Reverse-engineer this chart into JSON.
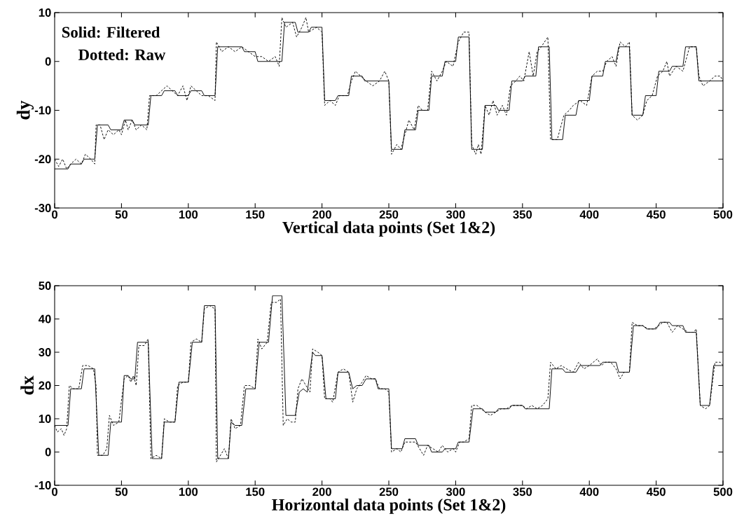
{
  "chart_data": [
    {
      "type": "line",
      "xlabel": "Vertical data points (Set 1&2)",
      "ylabel": "dy",
      "xlim": [
        0,
        500
      ],
      "ylim": [
        -30,
        10
      ],
      "xticks": [
        0,
        50,
        100,
        150,
        200,
        250,
        300,
        350,
        400,
        450,
        500
      ],
      "yticks": [
        -30,
        -20,
        -10,
        0,
        10
      ],
      "annotations": [
        "Solid: Filtered",
        "Dotted: Raw"
      ],
      "series": [
        {
          "color": "#000000",
          "line_style": "solid",
          "x": [
            0,
            10,
            12,
            20,
            22,
            30,
            32,
            40,
            42,
            50,
            52,
            58,
            60,
            70,
            72,
            80,
            82,
            90,
            92,
            100,
            102,
            110,
            112,
            120,
            122,
            140,
            142,
            150,
            152,
            170,
            172,
            180,
            182,
            190,
            192,
            200,
            202,
            210,
            212,
            220,
            222,
            230,
            232,
            250,
            252,
            260,
            262,
            270,
            272,
            280,
            282,
            290,
            292,
            300,
            302,
            310,
            312,
            320,
            322,
            330,
            332,
            340,
            342,
            350,
            352,
            360,
            362,
            370,
            372,
            380,
            382,
            390,
            392,
            400,
            402,
            410,
            412,
            420,
            422,
            430,
            432,
            440,
            442,
            450,
            452,
            460,
            462,
            470,
            472,
            480,
            482,
            500
          ],
          "values": [
            -22,
            -22,
            -21,
            -21,
            -20,
            -20,
            -13,
            -13,
            -14,
            -14,
            -12,
            -12,
            -13,
            -13,
            -7,
            -7,
            -6,
            -6,
            -7,
            -7,
            -6,
            -6,
            -7,
            -7,
            3,
            3,
            2,
            2,
            0,
            0,
            8,
            8,
            6,
            6,
            7,
            7,
            -8,
            -8,
            -7,
            -7,
            -3,
            -3,
            -4,
            -4,
            -18,
            -18,
            -14,
            -14,
            -10,
            -10,
            -3,
            -3,
            0,
            0,
            5,
            5,
            -18,
            -18,
            -9,
            -9,
            -10,
            -10,
            -4,
            -4,
            -3,
            -3,
            3,
            3,
            -16,
            -16,
            -11,
            -11,
            -8,
            -8,
            -3,
            -3,
            0,
            0,
            3,
            3,
            -11,
            -11,
            -7,
            -7,
            -2,
            -2,
            -1,
            -1,
            3,
            3,
            -4,
            -4
          ]
        },
        {
          "color": "#000000",
          "line_style": "dotted",
          "x": [
            0,
            3,
            6,
            9,
            12,
            16,
            20,
            23,
            27,
            30,
            31,
            34,
            37,
            40,
            44,
            48,
            50,
            53,
            55,
            58,
            61,
            65,
            69,
            71,
            76,
            80,
            84,
            88,
            92,
            96,
            99,
            102,
            106,
            110,
            115,
            120,
            121,
            125,
            130,
            135,
            140,
            145,
            150,
            155,
            160,
            165,
            168,
            170,
            173,
            178,
            181,
            185,
            188,
            190,
            196,
            200,
            202,
            206,
            210,
            213,
            219,
            222,
            225,
            229,
            233,
            238,
            243,
            247,
            250,
            252,
            256,
            259,
            262,
            265,
            269,
            272,
            275,
            279,
            282,
            286,
            290,
            293,
            298,
            302,
            306,
            310,
            312,
            315,
            317,
            319,
            322,
            325,
            328,
            331,
            335,
            338,
            341,
            345,
            348,
            351,
            355,
            358,
            361,
            364,
            369,
            371,
            376,
            381,
            385,
            388,
            393,
            398,
            402,
            406,
            410,
            413,
            417,
            420,
            423,
            427,
            430,
            432,
            436,
            440,
            443,
            447,
            451,
            455,
            458,
            460,
            465,
            470,
            475,
            480,
            482,
            485,
            490,
            494,
            498,
            500
          ],
          "values": [
            -20,
            -21.5,
            -20,
            -22,
            -21,
            -20,
            -21,
            -19,
            -20,
            -21,
            -13,
            -13,
            -16,
            -14,
            -15,
            -14,
            -15,
            -12,
            -14,
            -12,
            -14,
            -13,
            -14,
            -7,
            -7,
            -6,
            -5,
            -6,
            -7,
            -5,
            -8,
            -5,
            -6,
            -7,
            -7,
            -8,
            4,
            2,
            3,
            2,
            3,
            2,
            1,
            1,
            0,
            1,
            -1,
            9,
            7,
            8,
            5,
            7,
            9,
            6,
            7,
            6,
            -9,
            -8,
            -9,
            -7,
            -7,
            -4,
            -2,
            -3,
            -4,
            -5,
            -4,
            -2,
            -4,
            -19,
            -17,
            -18,
            -15,
            -12,
            -14,
            -9,
            -10,
            -10,
            -2,
            -4,
            -2,
            0,
            -1,
            4,
            6,
            6,
            -17,
            -19,
            -17,
            -19,
            -9,
            -11,
            -8,
            -11,
            -9,
            -11,
            -5,
            -4,
            -3,
            -4,
            2,
            -3,
            2,
            3,
            5,
            -16,
            -16,
            -11,
            -10,
            -9,
            -8,
            -9,
            -3,
            -2,
            -2,
            0,
            1,
            -1,
            4,
            3,
            4,
            -11,
            -12,
            -11,
            -8,
            -7,
            -3,
            -2,
            0,
            -3,
            -1,
            -2,
            3,
            3,
            -3,
            -5,
            -4,
            -3,
            -3,
            -4
          ]
        }
      ]
    },
    {
      "type": "line",
      "xlabel": "Horizontal data points (Set 1&2)",
      "ylabel": "dx",
      "xlim": [
        0,
        500
      ],
      "ylim": [
        -10,
        50
      ],
      "xticks": [
        0,
        50,
        100,
        150,
        200,
        250,
        300,
        350,
        400,
        450,
        500
      ],
      "yticks": [
        -10,
        0,
        10,
        20,
        30,
        40,
        50
      ],
      "series": [
        {
          "color": "#000000",
          "line_style": "solid",
          "x": [
            0,
            10,
            12,
            20,
            22,
            30,
            33,
            40,
            42,
            50,
            52,
            55,
            57,
            60,
            62,
            70,
            73,
            80,
            82,
            90,
            93,
            100,
            103,
            110,
            112,
            120,
            122,
            130,
            132,
            135,
            140,
            143,
            150,
            153,
            160,
            163,
            170,
            173,
            180,
            183,
            186,
            189,
            193,
            195,
            200,
            203,
            210,
            212,
            220,
            223,
            226,
            230,
            233,
            240,
            242,
            250,
            252,
            260,
            262,
            270,
            272,
            280,
            282,
            290,
            292,
            300,
            302,
            310,
            313,
            320,
            322,
            330,
            332,
            340,
            342,
            350,
            352,
            370,
            372,
            380,
            382,
            390,
            393,
            408,
            410,
            420,
            422,
            430,
            433,
            440,
            443,
            450,
            453,
            460,
            462,
            470,
            472,
            480,
            483,
            490,
            493,
            500
          ],
          "values": [
            8,
            8,
            19,
            19,
            25,
            25,
            -1,
            -1,
            9,
            9,
            23,
            23,
            22,
            22,
            33,
            33,
            -2,
            -2,
            9,
            9,
            21,
            21,
            33,
            33,
            44,
            44,
            -2,
            -2,
            9,
            8,
            8,
            19,
            19,
            33,
            33,
            47,
            47,
            11,
            11,
            18,
            19,
            18,
            30,
            29,
            29,
            16,
            16,
            24,
            24,
            19,
            20,
            20,
            22,
            22,
            19,
            19,
            1,
            1,
            4,
            4,
            2,
            2,
            0,
            0,
            1,
            1,
            3,
            3,
            13,
            13,
            12,
            12,
            13,
            13,
            14,
            14,
            13,
            13,
            25,
            25,
            24,
            24,
            26,
            26,
            27,
            27,
            24,
            24,
            38,
            38,
            37,
            37,
            39,
            39,
            38,
            38,
            36,
            36,
            14,
            14,
            26,
            26
          ]
        },
        {
          "color": "#000000",
          "line_style": "dotted",
          "x": [
            0,
            2,
            5,
            7,
            9,
            11,
            14,
            18,
            21,
            25,
            29,
            31,
            32,
            36,
            39,
            41,
            44,
            48,
            52,
            55,
            57,
            59,
            61,
            63,
            67,
            70,
            72,
            76,
            80,
            82,
            86,
            90,
            92,
            96,
            100,
            102,
            106,
            110,
            112,
            116,
            120,
            121,
            124,
            127,
            130,
            132,
            135,
            139,
            142,
            146,
            150,
            152,
            155,
            159,
            162,
            166,
            169,
            171,
            174,
            177,
            180,
            182,
            185,
            188,
            191,
            193,
            197,
            200,
            202,
            206,
            208,
            212,
            216,
            220,
            222,
            223,
            226,
            230,
            233,
            237,
            240,
            243,
            247,
            250,
            252,
            256,
            259,
            262,
            266,
            270,
            273,
            276,
            279,
            283,
            287,
            290,
            294,
            298,
            300,
            303,
            306,
            310,
            312,
            316,
            319,
            322,
            326,
            330,
            334,
            338,
            342,
            346,
            350,
            353,
            357,
            361,
            365,
            369,
            371,
            375,
            379,
            383,
            388,
            392,
            396,
            400,
            403,
            406,
            409,
            412,
            416,
            420,
            423,
            426,
            430,
            432,
            436,
            440,
            444,
            448,
            452,
            455,
            458,
            462,
            466,
            470,
            474,
            478,
            480,
            483,
            487,
            490,
            494,
            498,
            500
          ],
          "values": [
            8,
            6,
            7,
            5,
            7,
            20,
            19,
            19,
            26,
            26,
            25,
            20,
            -1,
            -1,
            1,
            11,
            8,
            9,
            22,
            23,
            21,
            23,
            20,
            32,
            32,
            34,
            -2,
            -1,
            -2,
            10,
            9,
            9,
            20,
            21,
            21,
            33,
            34,
            33,
            43,
            44,
            43,
            -3,
            -1,
            1,
            -2,
            10,
            7,
            8,
            20,
            20,
            19,
            34,
            31,
            33,
            45,
            45,
            46,
            8,
            10,
            9,
            9,
            19,
            22,
            20,
            18,
            31,
            30,
            29,
            16,
            16,
            15,
            24,
            25,
            24,
            18,
            15,
            19,
            21,
            23,
            22,
            22,
            19,
            19,
            18,
            0,
            1,
            0,
            3,
            3,
            3,
            1,
            -1,
            2,
            1,
            0,
            2,
            0,
            1,
            0,
            3,
            3,
            4,
            14,
            14,
            13,
            12,
            11,
            12,
            13,
            13,
            14,
            14,
            14,
            13,
            14,
            13,
            14,
            16,
            27,
            25,
            26,
            25,
            24,
            27,
            25,
            26,
            27,
            28,
            26,
            27,
            27,
            25,
            22,
            24,
            24,
            39,
            38,
            38,
            37,
            37,
            38,
            39,
            39,
            36,
            38,
            37,
            36,
            36,
            37,
            14,
            13,
            14,
            27,
            27,
            26
          ]
        }
      ]
    }
  ]
}
